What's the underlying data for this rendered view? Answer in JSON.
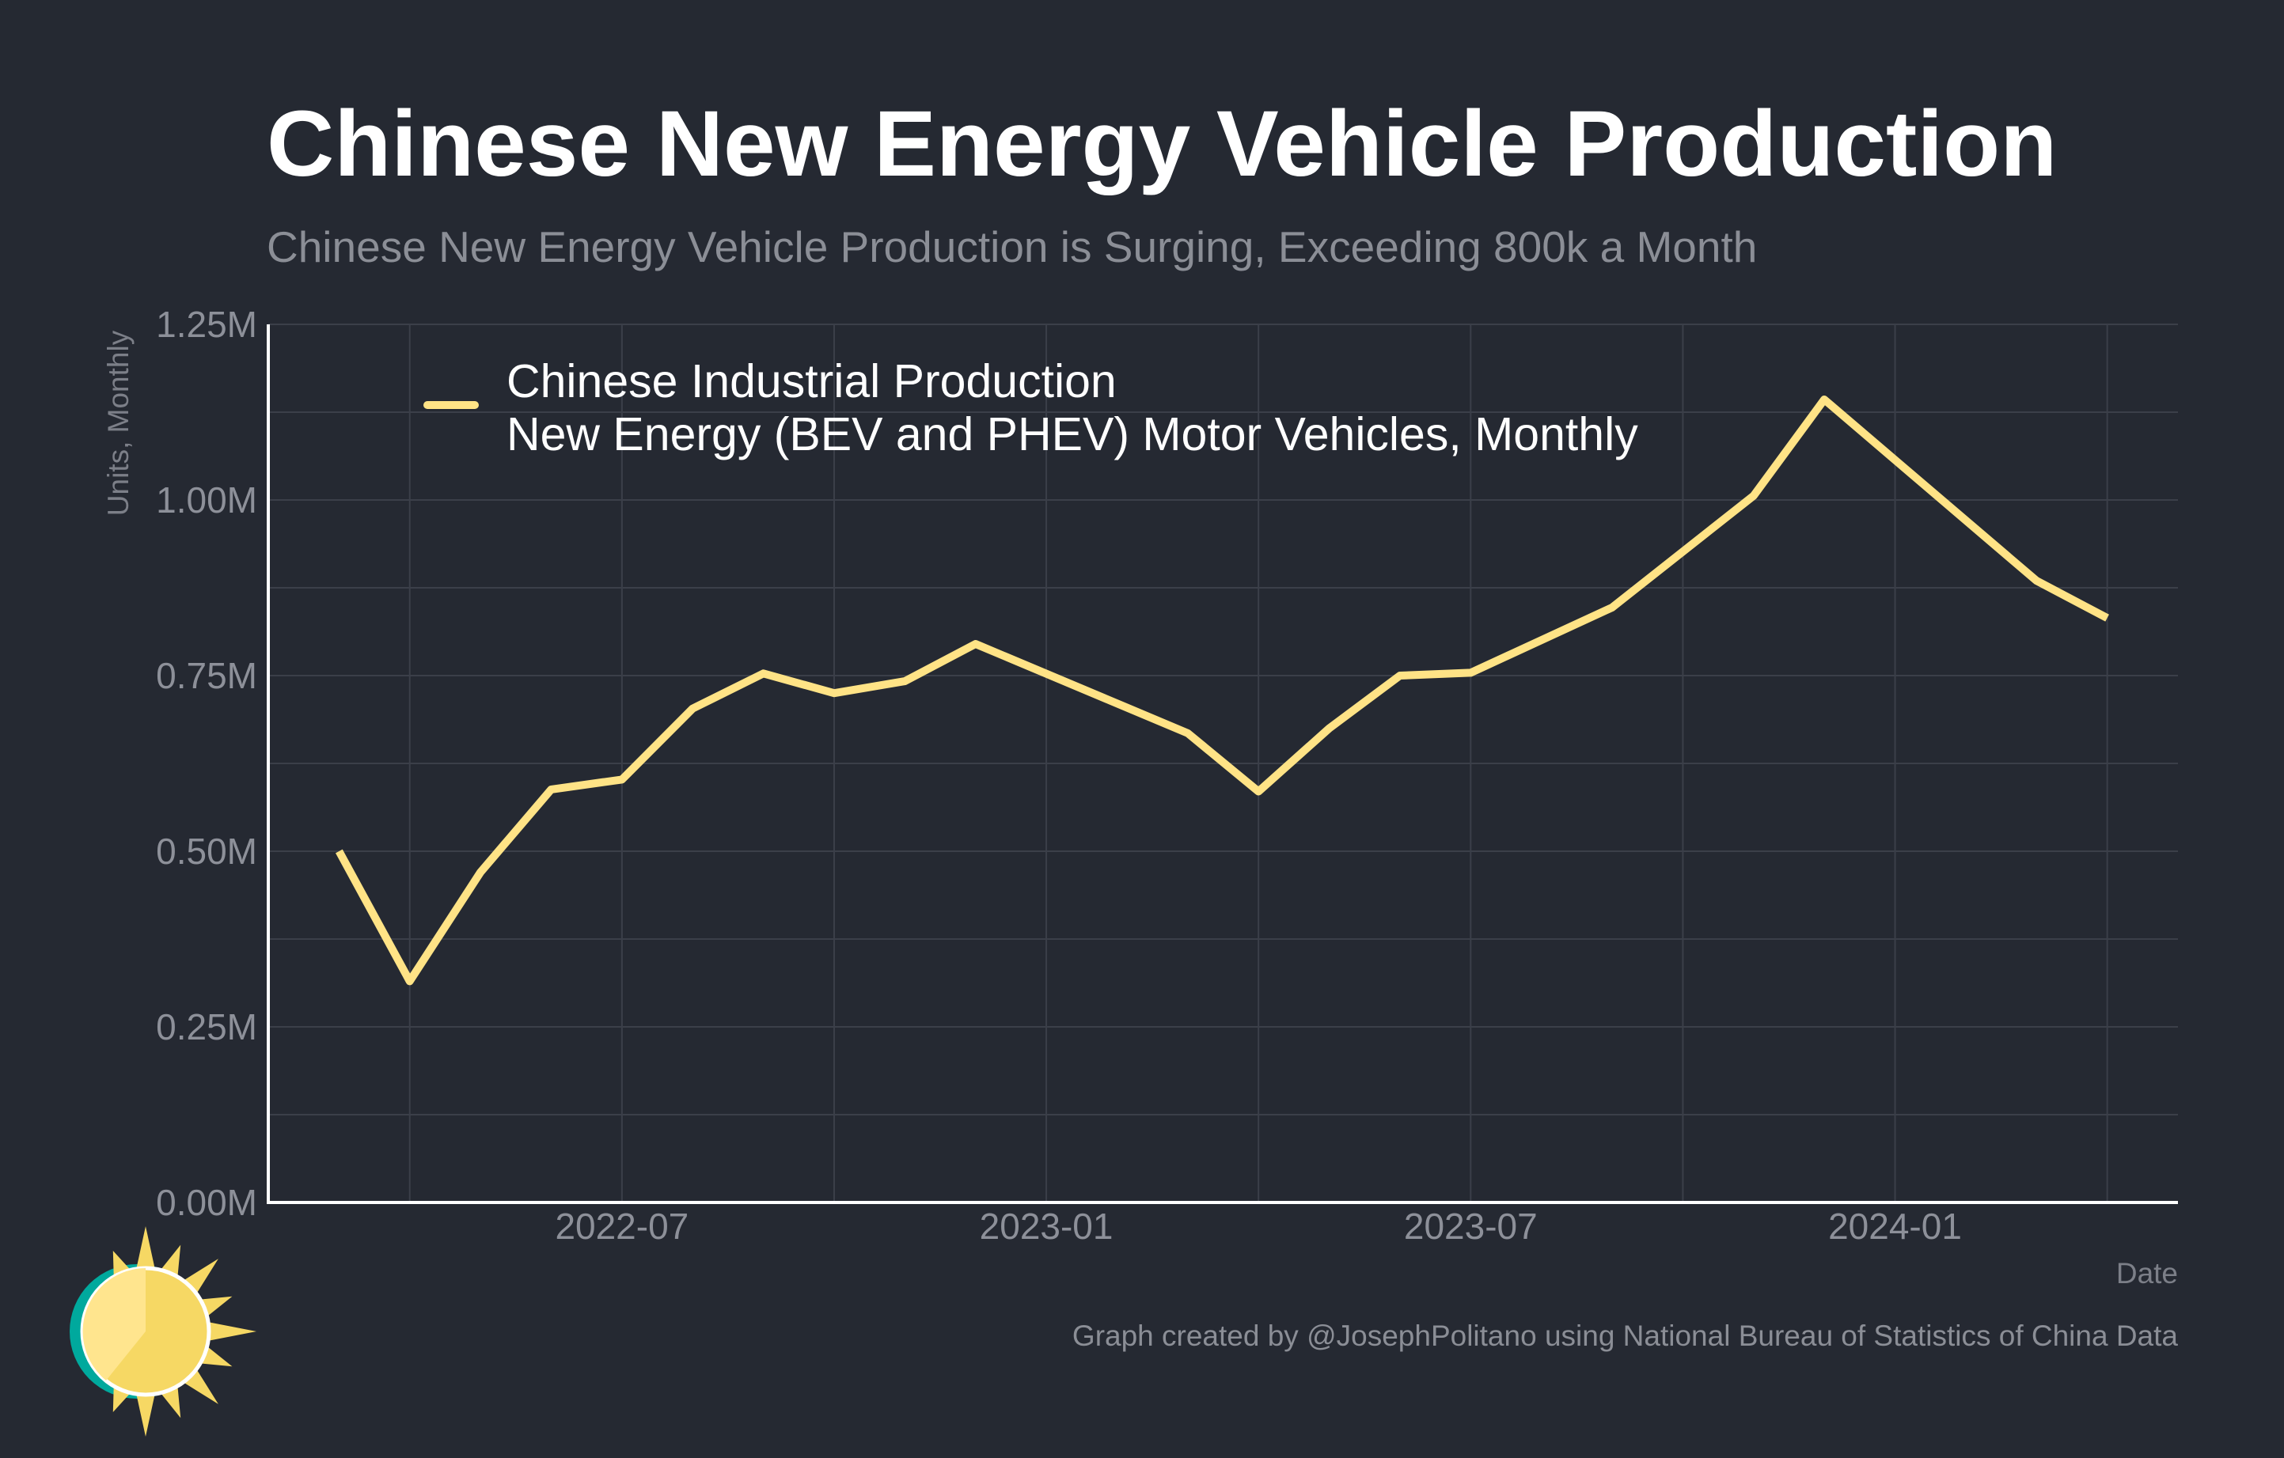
{
  "colors": {
    "background": "#252932",
    "line": "#ffe386",
    "grid": "#3b3f49",
    "axis": "#ffffff",
    "muted_text": "#8b8e96",
    "logo_ring": "#00a99d",
    "logo_sun": "#f6d864"
  },
  "chart_data": {
    "type": "line",
    "title": "Chinese New Energy Vehicle Production",
    "subtitle": "Chinese New Energy Vehicle Production is Surging, Exceeding 800k a Month",
    "ylabel": "Units, Monthly",
    "xlabel": "Date",
    "ylim": [
      0,
      1250000
    ],
    "y_ticks": [
      0,
      250000,
      500000,
      750000,
      1000000,
      1250000
    ],
    "y_tick_labels": [
      "0.00M",
      "0.25M",
      "0.50M",
      "0.75M",
      "1.00M",
      "1.25M"
    ],
    "x_ticks": [
      "2022-07",
      "2023-01",
      "2023-07",
      "2024-01"
    ],
    "x_range": [
      "2022-02",
      "2024-05"
    ],
    "grid": true,
    "legend_position": "top-left",
    "series": [
      {
        "name": "Chinese Industrial Production\nNew Energy (BEV and PHEV) Motor Vehicles, Monthly",
        "color": "#ffe386",
        "points": [
          {
            "x": "2022-03",
            "y": 500000
          },
          {
            "x": "2022-04",
            "y": 315000
          },
          {
            "x": "2022-05",
            "y": 470000
          },
          {
            "x": "2022-06",
            "y": 588000
          },
          {
            "x": "2022-07",
            "y": 602000
          },
          {
            "x": "2022-08",
            "y": 703000
          },
          {
            "x": "2022-09",
            "y": 753000
          },
          {
            "x": "2022-10",
            "y": 725000
          },
          {
            "x": "2022-11",
            "y": 742000
          },
          {
            "x": "2022-12",
            "y": 795000
          },
          {
            "x": "2023-03",
            "y": 668000
          },
          {
            "x": "2023-04",
            "y": 585000
          },
          {
            "x": "2023-05",
            "y": 675000
          },
          {
            "x": "2023-06",
            "y": 750000
          },
          {
            "x": "2023-07",
            "y": 754000
          },
          {
            "x": "2023-09",
            "y": 847000
          },
          {
            "x": "2023-11",
            "y": 1006000
          },
          {
            "x": "2023-12",
            "y": 1143000
          },
          {
            "x": "2024-03",
            "y": 885000
          },
          {
            "x": "2024-04",
            "y": 832000
          }
        ]
      }
    ]
  },
  "caption": "Graph created by @JosephPolitano using National Bureau of Statistics of China Data"
}
